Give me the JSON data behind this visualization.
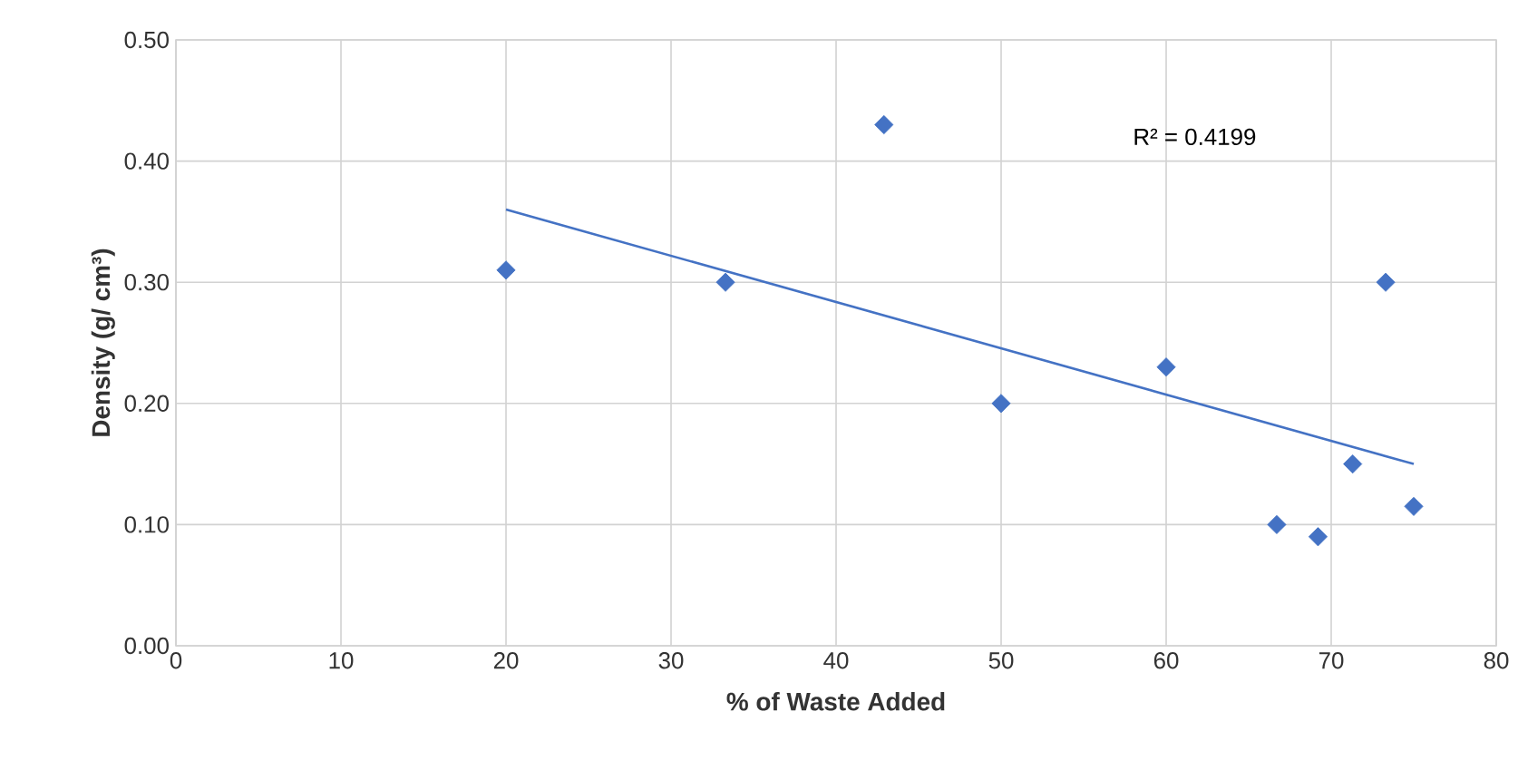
{
  "chart_data": {
    "type": "scatter",
    "xlabel": "% of Waste Added",
    "ylabel": "Density (g/ cm³)",
    "xlim": [
      0,
      80
    ],
    "xticks": [
      0,
      10,
      20,
      30,
      40,
      50,
      60,
      70,
      80
    ],
    "ylim": [
      0,
      0.5
    ],
    "yticks": [
      {
        "value": 0,
        "label": "0.00"
      },
      {
        "value": 0.1,
        "label": "0.10"
      },
      {
        "value": 0.2,
        "label": "0.20"
      },
      {
        "value": 0.3,
        "label": "0.30"
      },
      {
        "value": 0.4,
        "label": "0.40"
      },
      {
        "value": 0.5,
        "label": "0.50"
      }
    ],
    "grid": true,
    "annotations": [
      "R² = 0.4199"
    ],
    "series": [
      {
        "marker": "diamond",
        "color": "#4472c4",
        "x": [
          20,
          33.3,
          42.9,
          50,
          60,
          66.7,
          69.2,
          71.3,
          73.3,
          75
        ],
        "values": [
          0.31,
          0.3,
          0.43,
          0.2,
          0.23,
          0.1,
          0.09,
          0.15,
          0.3,
          0.115
        ]
      },
      {
        "type": "line",
        "marker": "none",
        "color": "#4472c4",
        "x": [
          20,
          75
        ],
        "values": [
          0.36,
          0.15
        ]
      }
    ]
  }
}
